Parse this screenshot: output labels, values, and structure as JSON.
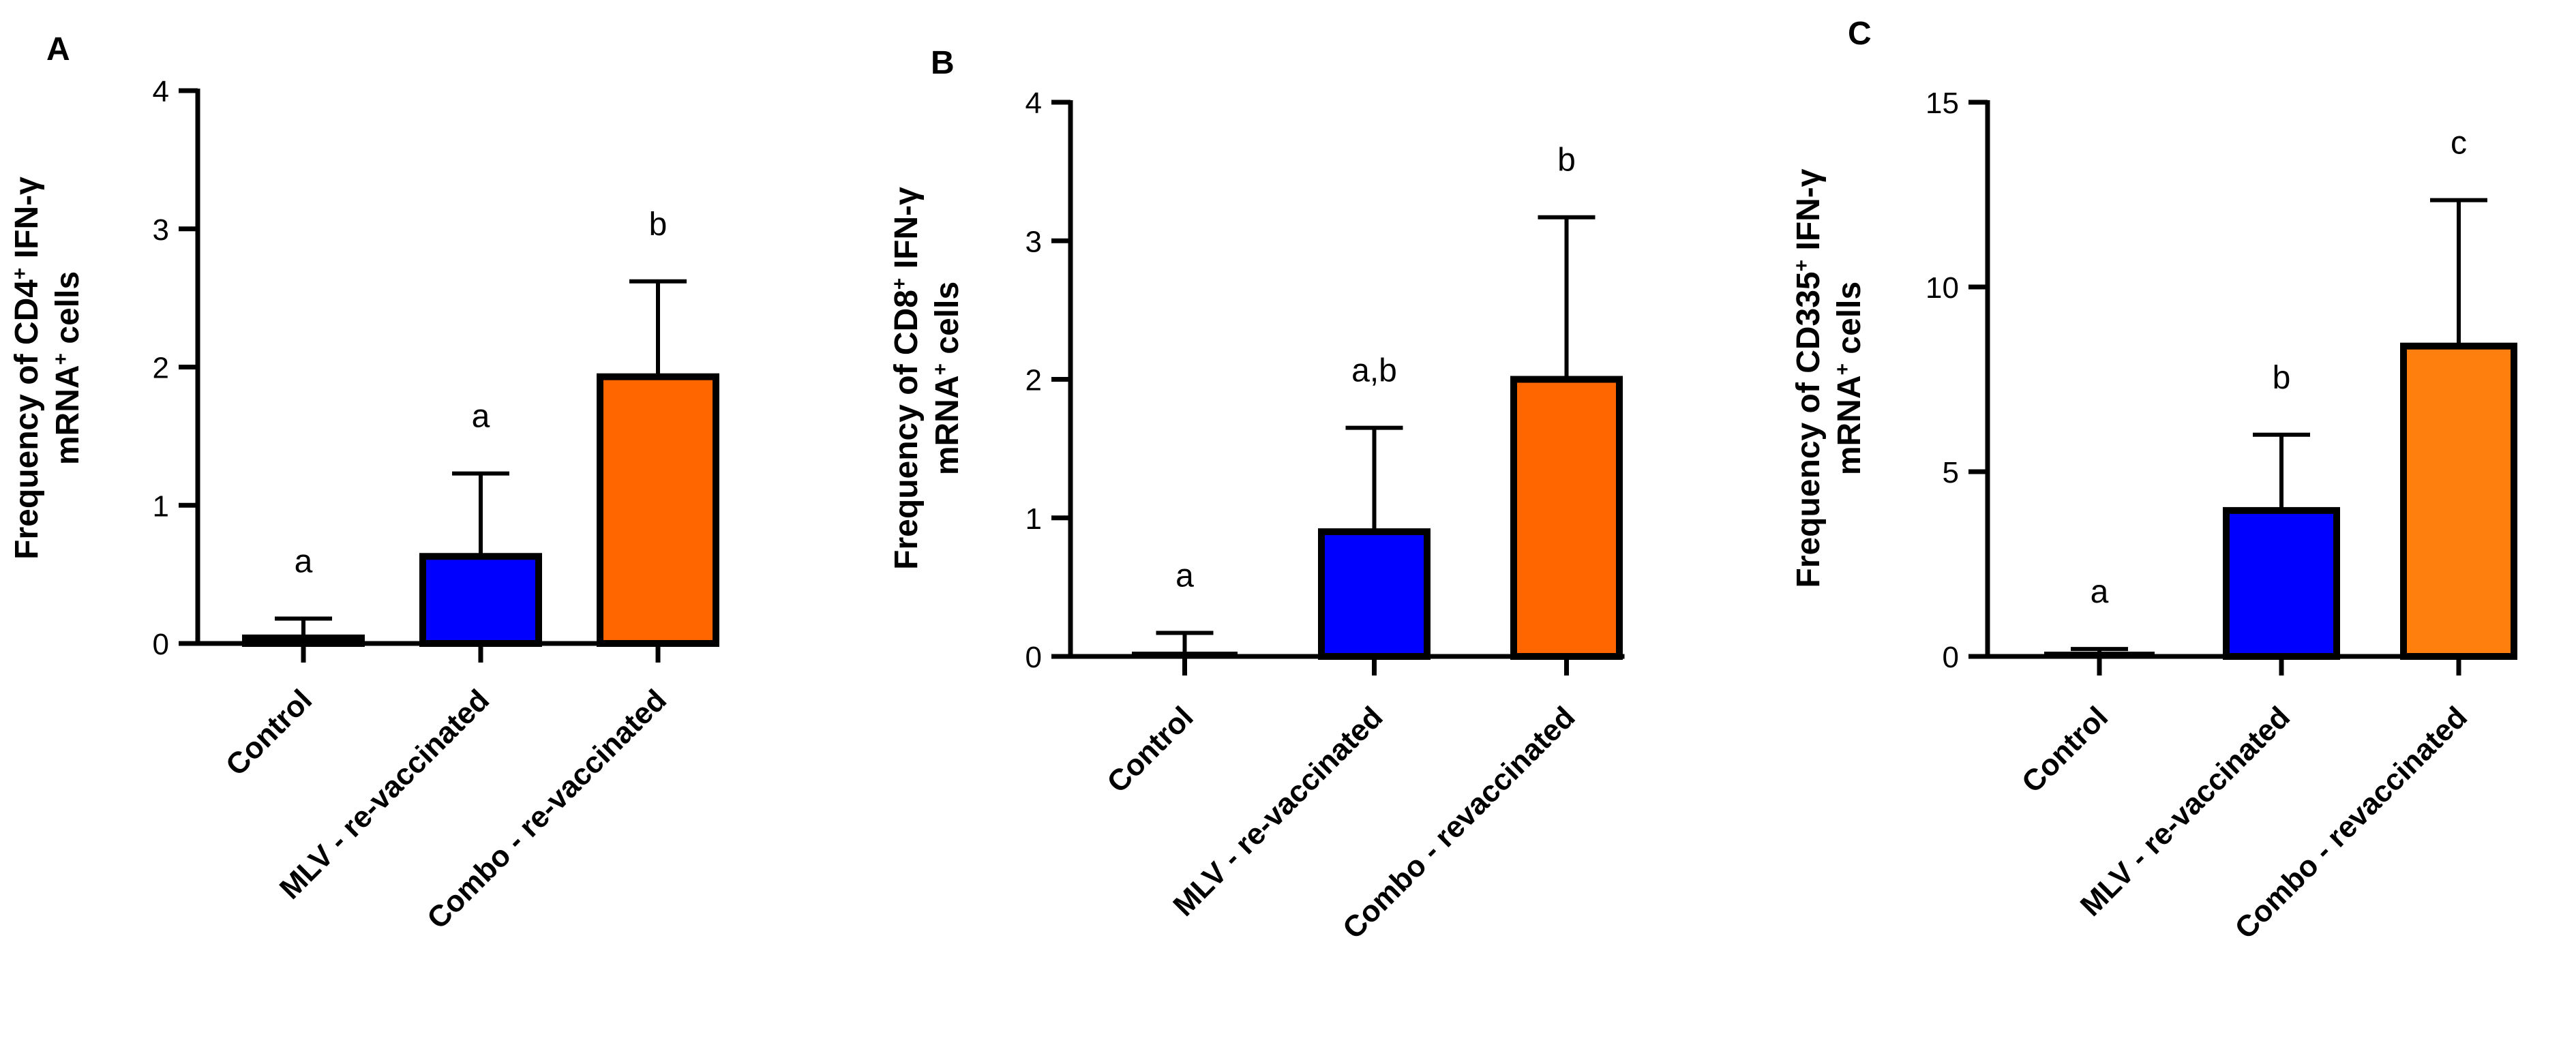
{
  "colors": {
    "control": "#ffffff",
    "mlv": "#0000ff",
    "combo_a": "#ff6600",
    "combo_b": "#ff6600",
    "combo_c": "#ff7f0e",
    "stroke": "#000000"
  },
  "chart_data": [
    {
      "type": "bar",
      "panel": "A",
      "ylabel_prefix": "Frequency of CD4",
      "ylabel_sup": "+",
      "ylabel_suffix": " IFN-γ",
      "ylabel_line2_prefix": "mRNA",
      "ylabel_line2_sup": "+",
      "ylabel_line2_suffix": " cells",
      "ylim": [
        0,
        4
      ],
      "yticks": [
        0,
        1,
        2,
        3,
        4
      ],
      "categories": [
        "Control",
        "MLV - re-vaccinated",
        "Combo - re-vaccinated"
      ],
      "values": [
        0.04,
        0.63,
        1.93
      ],
      "errors": [
        0.14,
        0.6,
        0.69
      ],
      "significance": [
        "a",
        "a",
        "b"
      ],
      "bar_colors": [
        "control",
        "mlv",
        "combo_a"
      ]
    },
    {
      "type": "bar",
      "panel": "B",
      "ylabel_prefix": "Frequency of CD8",
      "ylabel_sup": "+",
      "ylabel_suffix": " IFN-γ",
      "ylabel_line2_prefix": "mRNA",
      "ylabel_line2_sup": "+",
      "ylabel_line2_suffix": " cells",
      "ylim": [
        0,
        4
      ],
      "yticks": [
        0,
        1,
        2,
        3,
        4
      ],
      "categories": [
        "Control",
        "MLV - re-vaccinated",
        "Combo - revaccinated"
      ],
      "values": [
        0.0,
        0.9,
        2.0
      ],
      "errors": [
        0.17,
        0.75,
        1.17
      ],
      "significance": [
        "a",
        "a,b",
        "b"
      ],
      "bar_colors": [
        "control",
        "mlv",
        "combo_b"
      ]
    },
    {
      "type": "bar",
      "panel": "C",
      "ylabel_prefix": "Frequency of CD335",
      "ylabel_sup": "+",
      "ylabel_suffix": " IFN-γ",
      "ylabel_line2_prefix": "mRNA",
      "ylabel_line2_sup": "+",
      "ylabel_line2_suffix": " cells",
      "ylim": [
        0,
        15
      ],
      "yticks": [
        0,
        5,
        10,
        15
      ],
      "categories": [
        "Control",
        "MLV - re-vaccinated",
        "Combo - revaccinated"
      ],
      "values": [
        0.05,
        3.95,
        8.4
      ],
      "errors": [
        0.15,
        2.05,
        3.95
      ],
      "significance": [
        "a",
        "b",
        "c"
      ],
      "bar_colors": [
        "control",
        "mlv",
        "combo_c"
      ]
    }
  ]
}
